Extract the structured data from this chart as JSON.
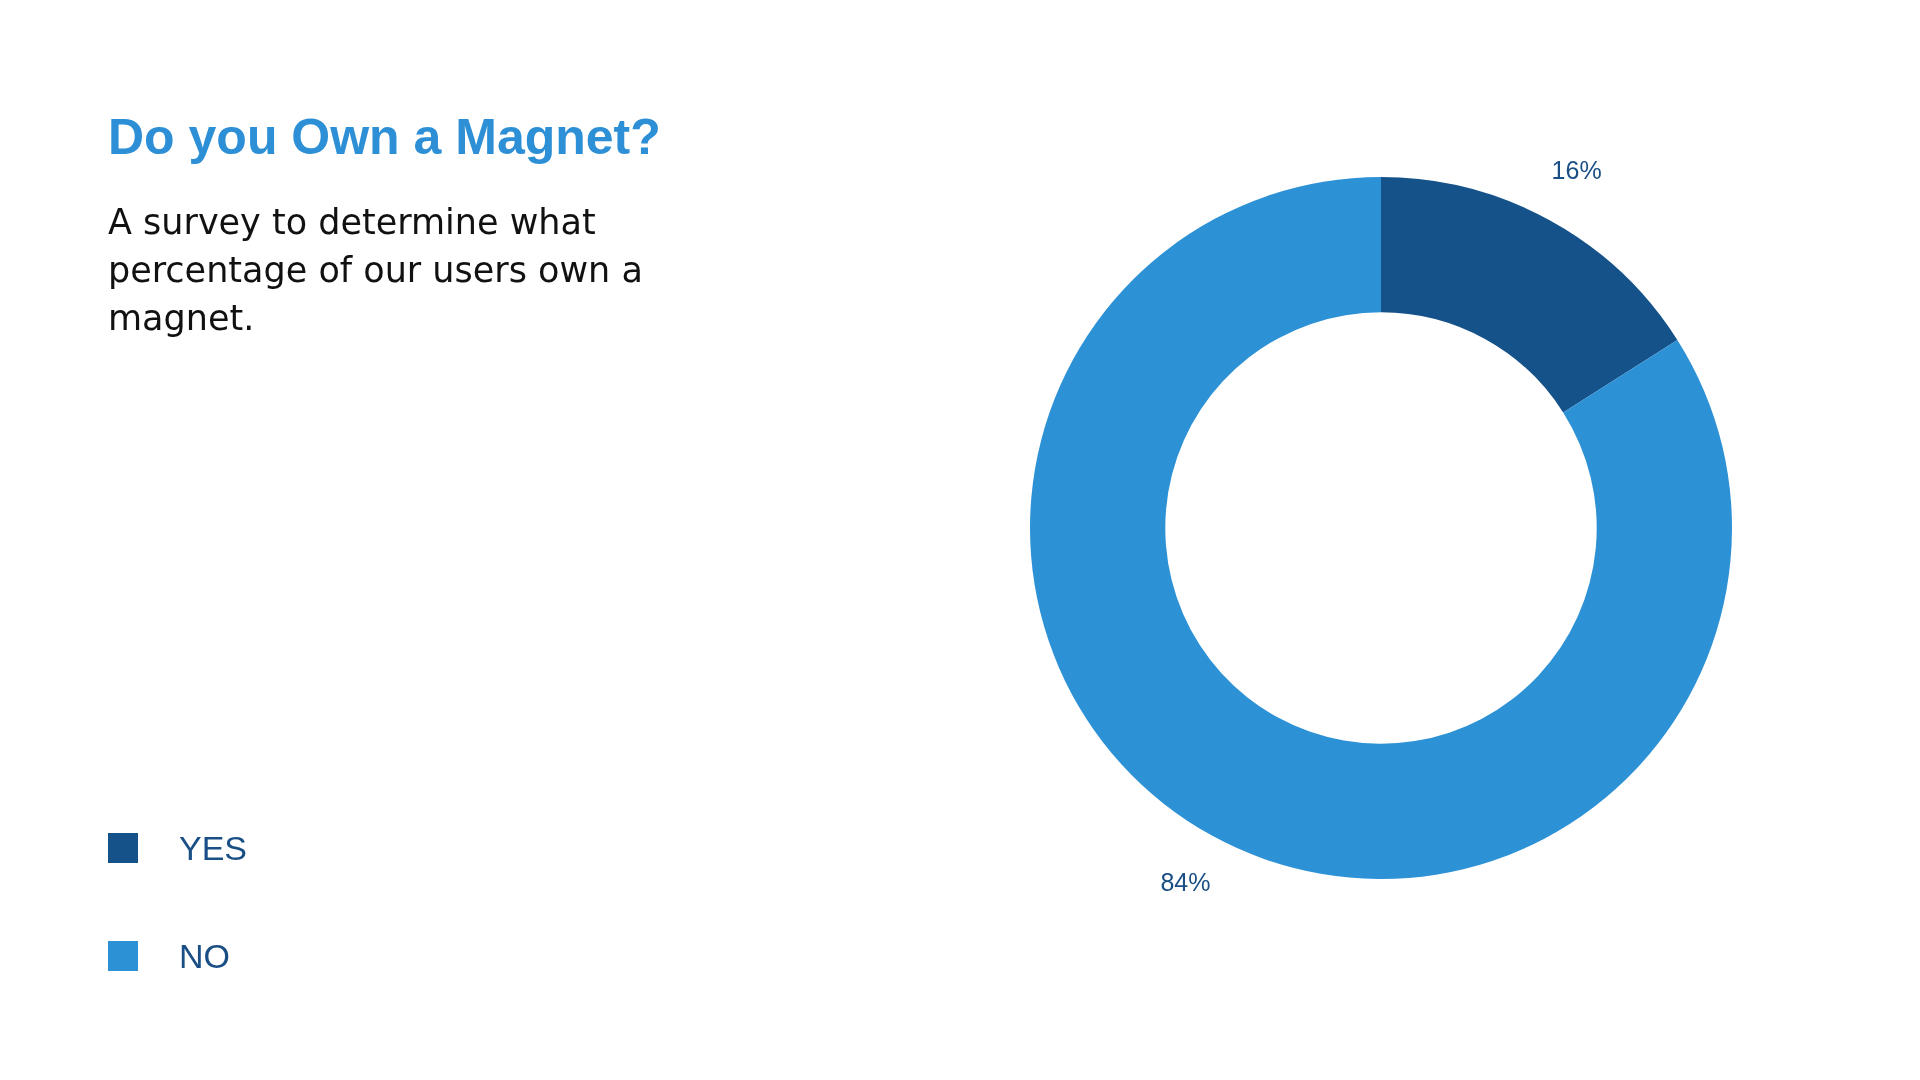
{
  "chart_data": {
    "type": "donut",
    "title": "Do you Own a Magnet?",
    "subtitle": "A survey to determine what percentage of our users own a magnet.",
    "categories": [
      "YES",
      "NO"
    ],
    "values": [
      16,
      84
    ],
    "value_labels": [
      "16%",
      "84%"
    ],
    "colors": [
      "#15528a",
      "#2d91d6"
    ],
    "legend": "bottom left"
  }
}
